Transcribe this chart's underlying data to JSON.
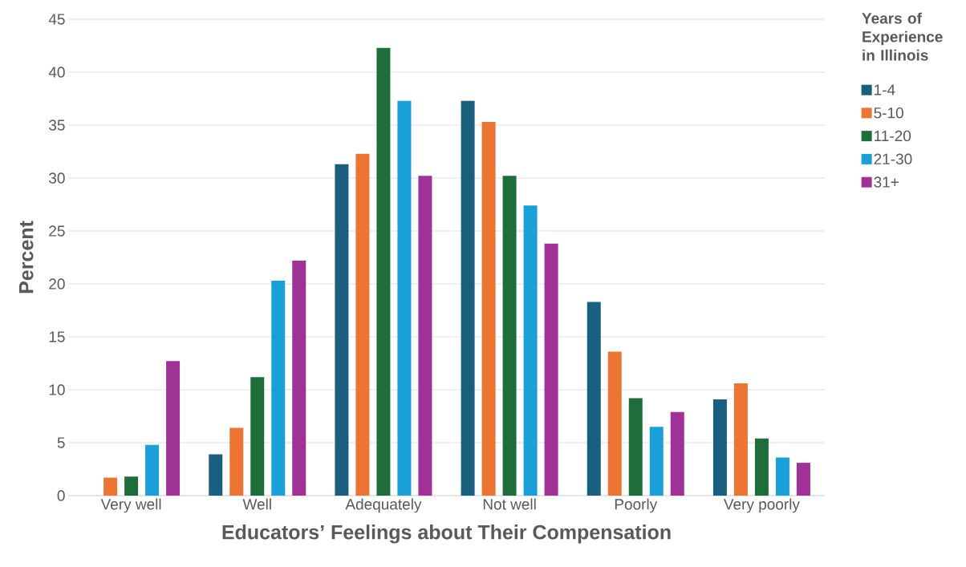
{
  "chart_data": {
    "type": "bar",
    "xlabel": "Educators’ Feelings about Their Compensation",
    "ylabel": "Percent",
    "legend_title": "Years of Experience in Illinois",
    "categories": [
      "Very well",
      "Well",
      "Adequately",
      "Not well",
      "Poorly",
      "Very poorly"
    ],
    "series": [
      {
        "name": "1-4",
        "color": "#1a5e80",
        "values": [
          null,
          3.9,
          31.3,
          37.3,
          18.3,
          9.1
        ]
      },
      {
        "name": "5-10",
        "color": "#ec7533",
        "values": [
          1.7,
          6.4,
          32.3,
          35.3,
          13.6,
          10.6
        ]
      },
      {
        "name": "11-20",
        "color": "#1d6e3a",
        "values": [
          1.8,
          11.2,
          42.3,
          30.2,
          9.2,
          5.4
        ]
      },
      {
        "name": "21-30",
        "color": "#1aa0d8",
        "values": [
          4.8,
          20.3,
          37.3,
          27.4,
          6.5,
          3.6
        ]
      },
      {
        "name": "31+",
        "color": "#a03297",
        "values": [
          12.7,
          22.2,
          30.2,
          23.8,
          7.9,
          3.1
        ]
      }
    ],
    "ylim": [
      0,
      45
    ],
    "yticks": [
      0,
      5,
      10,
      15,
      20,
      25,
      30,
      35,
      40,
      45
    ],
    "grid": "y",
    "legend": "top right"
  }
}
